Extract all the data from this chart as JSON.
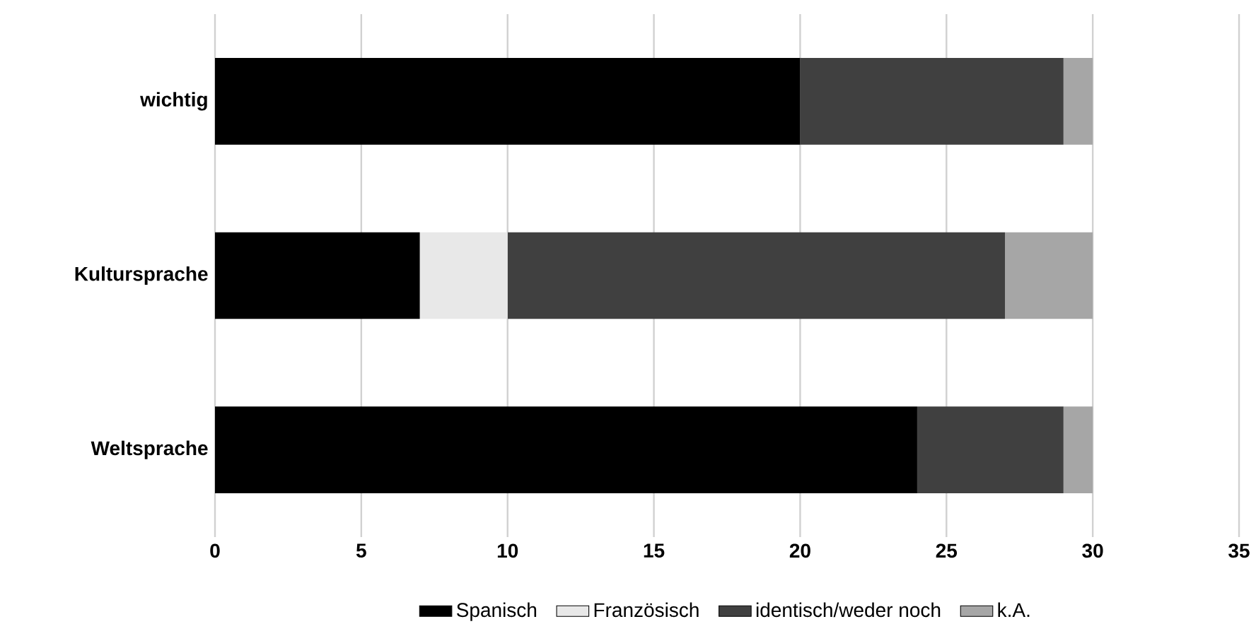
{
  "chart_data": {
    "type": "bar",
    "orientation": "horizontal",
    "stacked": true,
    "categories": [
      "wichtig",
      "Kultursprache",
      "Weltsprache"
    ],
    "series": [
      {
        "name": "Spanisch",
        "color": "#000000",
        "values": [
          20,
          7,
          24
        ]
      },
      {
        "name": "Französisch",
        "color": "#e8e8e8",
        "values": [
          0,
          3,
          0
        ]
      },
      {
        "name": "identisch/weder noch",
        "color": "#404040",
        "values": [
          9,
          17,
          5
        ]
      },
      {
        "name": "k.A.",
        "color": "#a6a6a6",
        "values": [
          1,
          3,
          1
        ]
      }
    ],
    "xlim": [
      0,
      35
    ],
    "xticks": [
      0,
      5,
      10,
      15,
      20,
      25,
      30,
      35
    ],
    "grid": "x",
    "legend": "bottom"
  }
}
